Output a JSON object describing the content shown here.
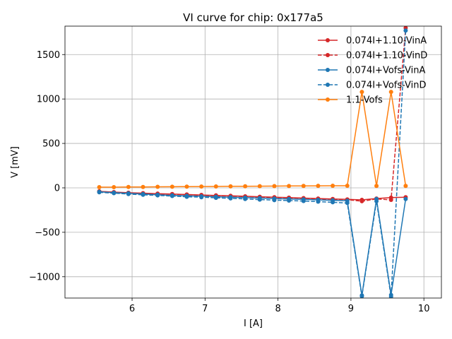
{
  "chart_data": {
    "type": "line",
    "title": "VI curve for chip: 0x177a5",
    "xlabel": "I [A]",
    "ylabel": "V [mV]",
    "xlim": [
      5.08,
      10.24
    ],
    "ylim": [
      -1240,
      1820
    ],
    "xticks": [
      6,
      7,
      8,
      9,
      10
    ],
    "yticks": [
      -1000,
      -500,
      0,
      500,
      1000,
      1500
    ],
    "grid": true,
    "legend_position": "top-right",
    "x": [
      5.55,
      5.75,
      5.95,
      6.15,
      6.35,
      6.55,
      6.75,
      6.95,
      7.15,
      7.35,
      7.55,
      7.75,
      7.95,
      8.15,
      8.35,
      8.55,
      8.75,
      8.95,
      9.15,
      9.35,
      9.55,
      9.75
    ],
    "series": [
      {
        "name": "0.074I+1.10-VinA",
        "color": "#d62728",
        "dashed": false,
        "values": [
          -40,
          -48,
          -55,
          -60,
          -65,
          -70,
          -75,
          -80,
          -85,
          -90,
          -95,
          -100,
          -105,
          -110,
          -115,
          -120,
          -125,
          -130,
          -135,
          -120,
          -110,
          -105
        ]
      },
      {
        "name": "0.074I+1.10-VinD",
        "color": "#d62728",
        "dashed": true,
        "values": [
          -40,
          -50,
          -57,
          -63,
          -68,
          -73,
          -78,
          -83,
          -88,
          -93,
          -98,
          -103,
          -108,
          -113,
          -118,
          -123,
          -128,
          -133,
          -150,
          -125,
          -135,
          1800
        ]
      },
      {
        "name": "0.074I+Vofs-VinA",
        "color": "#1f77b4",
        "dashed": false,
        "values": [
          -45,
          -55,
          -62,
          -70,
          -78,
          -85,
          -90,
          -95,
          -100,
          -105,
          -110,
          -115,
          -120,
          -125,
          -130,
          -135,
          -140,
          -145,
          -1210,
          -125,
          -1205,
          -125
        ]
      },
      {
        "name": "0.074I+Vofs-VinD",
        "color": "#1f77b4",
        "dashed": true,
        "values": [
          -50,
          -60,
          -70,
          -78,
          -85,
          -92,
          -100,
          -105,
          -112,
          -118,
          -125,
          -132,
          -138,
          -143,
          -148,
          -155,
          -162,
          -170,
          -1220,
          -150,
          -1225,
          1770
        ]
      },
      {
        "name": "1.1-Vofs",
        "color": "#ff7f0e",
        "dashed": false,
        "values": [
          8,
          8,
          10,
          10,
          12,
          13,
          14,
          15,
          16,
          17,
          18,
          19,
          20,
          21,
          22,
          23,
          24,
          24,
          1080,
          22,
          1080,
          22
        ]
      }
    ]
  }
}
